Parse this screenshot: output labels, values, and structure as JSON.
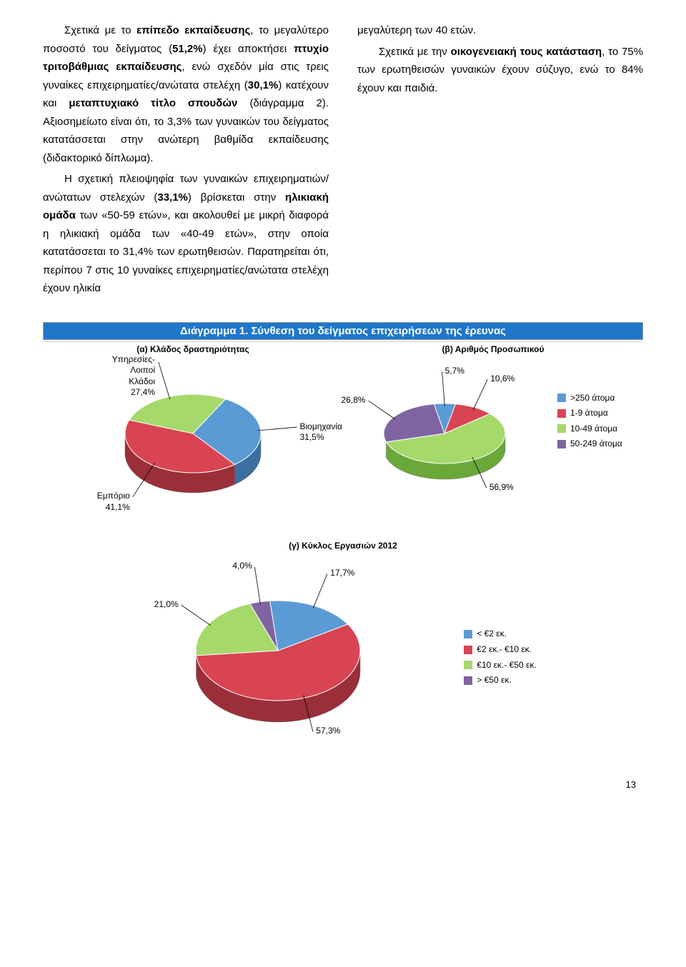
{
  "text": {
    "left_p1": "Σχετικά με το <b>επίπεδο εκπαίδευσης</b>, το μεγαλύτερο ποσοστό του δείγματος (<b>51,2%</b>) έχει αποκτήσει <b>πτυχίο τριτοβάθμιας εκπαίδευσης</b>, ενώ σχεδόν μία στις τρεις γυναίκες επιχειρηματίες/ανώτατα στελέχη (<b>30,1%</b>) κατέχουν και <b>μεταπτυχιακό τίτλο σπουδών</b> (διάγραμμα 2). Αξιοσημείωτο είναι ότι, το 3,3% των γυναικών του δείγματος κατατάσσεται στην ανώτερη βαθμίδα εκπαίδευσης (διδακτορικό δίπλωμα).",
    "left_p2": "Η σχετική πλειοψηφία των γυναικών επιχειρηματιών/ανώτατων στελεχών (<b>33,1%</b>) βρίσκεται στην <b>ηλικιακή ομάδα</b> των «50-59 ετών», και ακολουθεί με μικρή διαφορά η ηλικιακή ομάδα των «40-49 ετών», στην οποία κατατάσσεται το 31,4% των ερωτηθεισών. Παρατηρείται ότι, περίπου 7 στις 10 γυναίκες επιχειρηματίες/ανώτατα στελέχη έχουν ηλικία",
    "right_p1": "μεγαλύτερη των 40 ετών.",
    "right_p2": "Σχετικά με την <b>οικογενειακή τους κατάσταση</b>, το 75% των ερωτηθεισών γυναικών έχουν σύζυγο, ενώ το 84% έχουν και παιδιά."
  },
  "diagram1": {
    "title": "Διάγραμμα 1. Σύνθεση του δείγματος επιχειρήσεων της έρευνας",
    "sub_a": "(α) Κλάδος δραστηριότητας",
    "sub_b": "(β) Αριθμός Προσωπικού",
    "sub_c": "(γ) Κύκλος Εργασιών 2012",
    "chart_a": {
      "segments": [
        {
          "label": "Υπηρεσίες-\nΛοιποί\nΚλάδοι\n27,4%",
          "value": 27.4,
          "color_top": "#a6d96a",
          "color_side": "#6aa83a"
        },
        {
          "label": "Βιομηχανία\n31,5%",
          "value": 31.5,
          "color_top": "#5b9bd5",
          "color_side": "#3a6fa0"
        },
        {
          "label": "Eμπόριο\n41,1%",
          "value": 41.1,
          "color_top": "#d94452",
          "color_side": "#9a2f3a"
        }
      ]
    },
    "chart_b": {
      "segments": [
        {
          "label": "5,7%",
          "value": 5.7,
          "color_top": "#5b9bd5",
          "color_side": "#3a6fa0"
        },
        {
          "label": "10,6%",
          "value": 10.6,
          "color_top": "#d94452",
          "color_side": "#9a2f3a"
        },
        {
          "label": "56,9%",
          "value": 56.9,
          "color_top": "#a6d96a",
          "color_side": "#6aa83a"
        },
        {
          "label": "26,8%",
          "value": 26.8,
          "color_top": "#8064a2",
          "color_side": "#5a4676"
        }
      ],
      "legend": [
        {
          "label": ">250 άτομα",
          "color": "#5b9bd5"
        },
        {
          "label": "1-9 άτομα",
          "color": "#d94452"
        },
        {
          "label": "10-49 άτομα",
          "color": "#a6d96a"
        },
        {
          "label": "50-249 άτομα",
          "color": "#8064a2"
        }
      ]
    },
    "chart_c": {
      "segments": [
        {
          "label": "4,0%",
          "value": 4.0,
          "color_top": "#8064a2",
          "color_side": "#5a4676"
        },
        {
          "label": "17,7%",
          "value": 17.7,
          "color_top": "#5b9bd5",
          "color_side": "#3a6fa0"
        },
        {
          "label": "57,3%",
          "value": 57.3,
          "color_top": "#d94452",
          "color_side": "#9a2f3a"
        },
        {
          "label": "21,0%",
          "value": 21.0,
          "color_top": "#a6d96a",
          "color_side": "#6aa83a"
        }
      ],
      "legend": [
        {
          "label": "< €2 εκ.",
          "color": "#5b9bd5"
        },
        {
          "label": "€2 εκ.- €10 εκ.",
          "color": "#d94452"
        },
        {
          "label": "€10 εκ.- €50 εκ.",
          "color": "#a6d96a"
        },
        {
          "label": "> €50 εκ.",
          "color": "#8064a2"
        }
      ]
    }
  },
  "page_number": "13"
}
